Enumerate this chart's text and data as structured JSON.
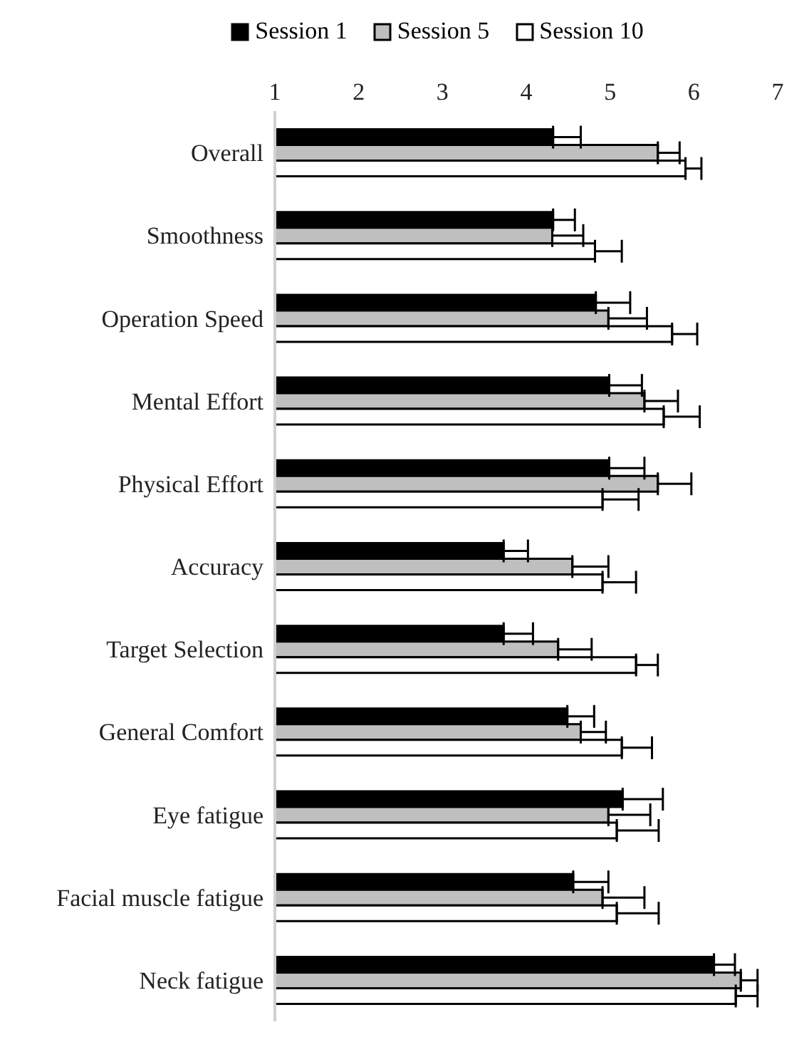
{
  "chart_data": {
    "type": "bar",
    "orientation": "horizontal",
    "legend": "top",
    "grid": false,
    "categories": [
      "Overall",
      "Smoothness",
      "Operation Speed",
      "Mental Effort",
      "Physical Effort",
      "Accuracy",
      "Target Selection",
      "General Comfort",
      "Eye fatigue",
      "Facial muscle fatigue",
      "Neck fatigue"
    ],
    "xlim": [
      1,
      7
    ],
    "xticks": [
      1,
      2,
      3,
      4,
      5,
      6,
      7
    ],
    "series": [
      {
        "name": "Session 1",
        "color": "#000000",
        "values": [
          4.32,
          4.32,
          4.83,
          4.99,
          4.99,
          3.73,
          3.73,
          4.49,
          5.15,
          4.56,
          6.24
        ],
        "errors": [
          [
            4.32,
            4.65
          ],
          [
            4.32,
            4.58
          ],
          [
            4.83,
            5.24
          ],
          [
            4.99,
            5.38
          ],
          [
            4.99,
            5.41
          ],
          [
            3.73,
            4.02
          ],
          [
            3.73,
            4.08
          ],
          [
            4.49,
            4.81
          ],
          [
            5.15,
            5.63
          ],
          [
            4.56,
            4.98
          ],
          [
            6.24,
            6.49
          ]
        ]
      },
      {
        "name": "Session 5",
        "color": "#bfbfbf",
        "values": [
          5.57,
          4.31,
          4.98,
          5.41,
          5.57,
          4.55,
          4.38,
          4.65,
          4.98,
          4.91,
          6.56
        ],
        "errors": [
          [
            5.57,
            5.83
          ],
          [
            4.31,
            4.68
          ],
          [
            4.98,
            5.44
          ],
          [
            5.41,
            5.81
          ],
          [
            5.57,
            5.97
          ],
          [
            4.55,
            4.98
          ],
          [
            4.38,
            4.78
          ],
          [
            4.65,
            4.95
          ],
          [
            4.98,
            5.48
          ],
          [
            4.91,
            5.41
          ],
          [
            6.56,
            6.76
          ]
        ]
      },
      {
        "name": "Session 10",
        "color": "#ffffff",
        "values": [
          5.9,
          4.82,
          5.74,
          5.64,
          4.91,
          4.91,
          5.31,
          5.14,
          5.08,
          5.08,
          6.5
        ],
        "errors": [
          [
            5.9,
            6.09
          ],
          [
            4.82,
            5.14
          ],
          [
            5.74,
            6.04
          ],
          [
            5.64,
            6.07
          ],
          [
            4.91,
            5.34
          ],
          [
            4.91,
            5.31
          ],
          [
            5.31,
            5.57
          ],
          [
            5.14,
            5.5
          ],
          [
            5.08,
            5.58
          ],
          [
            5.08,
            5.58
          ],
          [
            6.5,
            6.76
          ]
        ]
      }
    ]
  }
}
